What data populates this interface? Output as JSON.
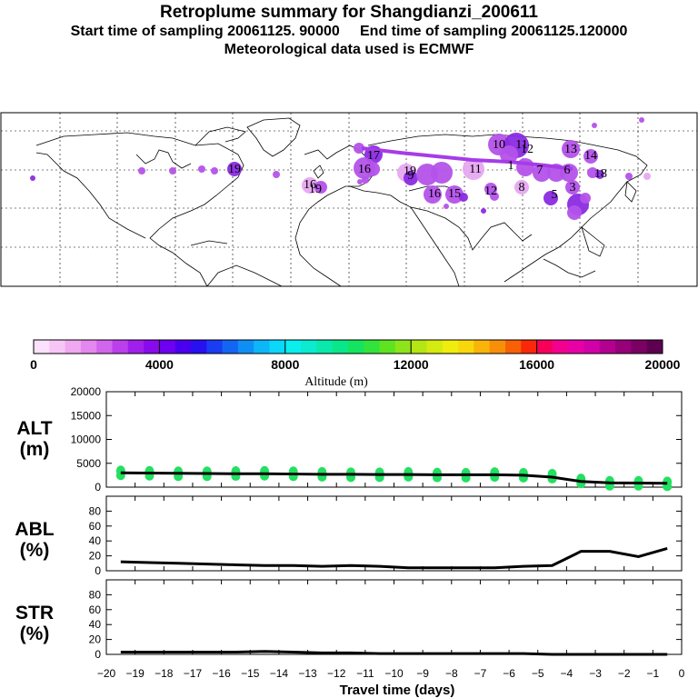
{
  "header": {
    "title": "Retroplume summary for Shangdianzi_200611",
    "sampling": "Start time of sampling 20061125. 90000     End time of sampling 20061125.120000",
    "met": "Meteorological data used is ECMWF"
  },
  "colorbar": {
    "label": "Altitude (m)",
    "ticks": [
      "0",
      "4000",
      "8000",
      "12000",
      "16000",
      "20000"
    ],
    "colors": [
      "#fbe1fb",
      "#f7c6f7",
      "#f0a8f0",
      "#e487ee",
      "#d165ec",
      "#bb3fec",
      "#a01fec",
      "#8a0aee",
      "#6d00f0",
      "#4a00ee",
      "#2810f0",
      "#1a3cf2",
      "#1366f4",
      "#0f8ff6",
      "#0cb6f8",
      "#0ad7fa",
      "#0aeeee",
      "#0aebcf",
      "#0ae8ac",
      "#0ae68a",
      "#14e460",
      "#33e33b",
      "#5ee320",
      "#8ee41a",
      "#b4e614",
      "#d5ea10",
      "#f0ec10",
      "#f8d80c",
      "#f8b40a",
      "#f88f08",
      "#f86006",
      "#f82808",
      "#f8005a",
      "#f20090",
      "#e600a6",
      "#d200a8",
      "#b40090",
      "#960078",
      "#7a0064",
      "#5e0050"
    ]
  },
  "map": {
    "labels": [
      {
        "t": "10",
        "c": "#b452ea"
      },
      {
        "t": "11",
        "c": "#b452ea"
      },
      {
        "t": "12",
        "c": "#b452ea"
      },
      {
        "t": "13",
        "c": "#8a2be2"
      },
      {
        "t": "14",
        "c": "#b452ea"
      },
      {
        "t": "16",
        "c": "#b452ea"
      },
      {
        "t": "17",
        "c": "#b452ea"
      },
      {
        "t": "19",
        "c": "#8a2be2"
      },
      {
        "t": "19",
        "c": "#b452ea"
      },
      {
        "t": "16",
        "c": "#b452ea"
      },
      {
        "t": "11",
        "c": "#e6a8f0"
      },
      {
        "t": "1",
        "c": "#b452ea"
      },
      {
        "t": "12",
        "c": "#b452ea"
      },
      {
        "t": "16",
        "c": "#b452ea"
      },
      {
        "t": "15",
        "c": "#d88ef0"
      },
      {
        "t": "9",
        "c": "#b452ea"
      },
      {
        "t": "7",
        "c": "#b452ea"
      },
      {
        "t": "6",
        "c": "#b452ea"
      },
      {
        "t": "5",
        "c": "#b452ea"
      },
      {
        "t": "3",
        "c": "#e6a8f0"
      },
      {
        "t": "8",
        "c": "#8a2be2"
      },
      {
        "t": "18",
        "c": "#b452ea"
      },
      {
        "t": "19",
        "c": "#8a2be2"
      }
    ]
  },
  "chart_data": [
    {
      "type": "scatter",
      "panel_label": [
        "ALT",
        "(m)"
      ],
      "x": [
        -19.5,
        -18.5,
        -17.5,
        -16.5,
        -15.5,
        -14.5,
        -13.5,
        -12.5,
        -11.5,
        -10.5,
        -9.5,
        -8.5,
        -7.5,
        -6.5,
        -5.5,
        -4.5,
        -3.5,
        -2.5,
        -1.5,
        -0.5
      ],
      "median_line": [
        3000,
        2950,
        2900,
        2850,
        2800,
        2800,
        2750,
        2700,
        2700,
        2650,
        2650,
        2600,
        2600,
        2600,
        2500,
        2100,
        1200,
        900,
        850,
        800
      ],
      "points_altitude": [
        3000,
        2900,
        2800,
        2800,
        2850,
        2900,
        2800,
        2700,
        2600,
        2600,
        2700,
        2550,
        2500,
        2650,
        2500,
        2300,
        1300,
        800,
        800,
        700
      ],
      "ylim": [
        0,
        20000
      ],
      "yticks": [
        "0",
        "5000",
        "10000",
        "15000",
        "20000"
      ],
      "point_color": "#22e060"
    },
    {
      "type": "line",
      "panel_label": [
        "ABL",
        "(%)"
      ],
      "x": [
        -19.5,
        -18.5,
        -17.5,
        -16.5,
        -15.5,
        -14.5,
        -13.5,
        -12.5,
        -11.5,
        -10.5,
        -9.5,
        -8.5,
        -7.5,
        -6.5,
        -5.5,
        -4.5,
        -3.5,
        -2.5,
        -1.5,
        -0.5
      ],
      "values": [
        12,
        11,
        10,
        9,
        8,
        7,
        7,
        6,
        7,
        6,
        4,
        4,
        4,
        4,
        6,
        7,
        26,
        26,
        19,
        30
      ],
      "ylim": [
        0,
        100
      ],
      "yticks": [
        "0",
        "20",
        "40",
        "60",
        "80"
      ]
    },
    {
      "type": "line",
      "panel_label": [
        "STR",
        "(%)"
      ],
      "x": [
        -19.5,
        -18.5,
        -17.5,
        -16.5,
        -15.5,
        -14.5,
        -13.5,
        -12.5,
        -11.5,
        -10.5,
        -9.5,
        -8.5,
        -7.5,
        -6.5,
        -5.5,
        -4.5,
        -3.5,
        -2.5,
        -1.5,
        -0.5
      ],
      "values": [
        3,
        3,
        3,
        3,
        3,
        4,
        3,
        2,
        2,
        1,
        1,
        1,
        1,
        1,
        1,
        0,
        0,
        0,
        0,
        0
      ],
      "ylim": [
        0,
        100
      ],
      "yticks": [
        "0",
        "20",
        "40",
        "60",
        "80"
      ]
    }
  ],
  "xaxis": {
    "label": "Travel time (days)",
    "ticks": [
      "−20",
      "−19",
      "−18",
      "−17",
      "−16",
      "−15",
      "−14",
      "−13",
      "−12",
      "−11",
      "−10",
      "−9",
      "−8",
      "−7",
      "−6",
      "−5",
      "−4",
      "−3",
      "−2",
      "−1",
      "0"
    ]
  }
}
